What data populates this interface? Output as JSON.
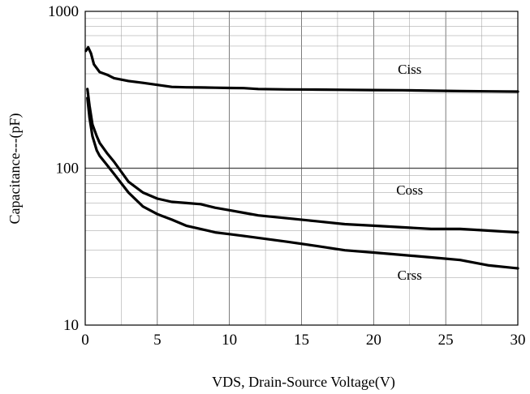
{
  "chart_data": {
    "type": "line",
    "title": "",
    "xlabel": "VDS, Drain-Source Voltage(V)",
    "ylabel": "Capacitance---(pF)",
    "xlim": [
      0,
      30
    ],
    "ylim": [
      10,
      1000
    ],
    "yscale": "log",
    "grid": true,
    "x_ticks": [
      0,
      5,
      10,
      15,
      20,
      25,
      30
    ],
    "y_ticks": [
      10,
      100,
      1000
    ],
    "series": [
      {
        "name": "Ciss",
        "x": [
          0.05,
          0.2,
          0.4,
          0.6,
          1.0,
          1.5,
          2.0,
          3.0,
          4.0,
          5.0,
          6.0,
          7.0,
          8.0,
          9.0,
          10.0,
          11.0,
          12.0,
          14.0,
          16.0,
          18.0,
          20.0,
          22.0,
          24.0,
          26.0,
          28.0,
          30.0
        ],
        "y": [
          560,
          590,
          540,
          460,
          410,
          395,
          375,
          360,
          350,
          340,
          330,
          328,
          327,
          326,
          325,
          324,
          320,
          318,
          317,
          316,
          315,
          314,
          312,
          310,
          309,
          308
        ]
      },
      {
        "name": "Coss",
        "x": [
          0.15,
          0.3,
          0.5,
          0.8,
          1.0,
          1.5,
          2.0,
          3.0,
          4.0,
          5.0,
          6.0,
          7.0,
          8.0,
          9.0,
          10.0,
          11.0,
          12.0,
          14.0,
          16.0,
          18.0,
          20.0,
          22.0,
          24.0,
          26.0,
          28.0,
          30.0
        ],
        "y": [
          320,
          250,
          190,
          160,
          145,
          125,
          110,
          82,
          70,
          64,
          61,
          60,
          59,
          56,
          54,
          52,
          50,
          48,
          46,
          44,
          43,
          42,
          41,
          41,
          40,
          39
        ]
      },
      {
        "name": "Crss",
        "x": [
          0.15,
          0.3,
          0.5,
          0.8,
          1.0,
          1.5,
          2.0,
          3.0,
          4.0,
          5.0,
          6.0,
          7.0,
          8.0,
          9.0,
          10.0,
          11.0,
          12.0,
          14.0,
          16.0,
          18.0,
          20.0,
          22.0,
          24.0,
          26.0,
          28.0,
          30.0
        ],
        "y": [
          280,
          210,
          160,
          130,
          120,
          105,
          92,
          70,
          57,
          51,
          47,
          43,
          41,
          39,
          38,
          37,
          36,
          34,
          32,
          30,
          29,
          28,
          27,
          26,
          24,
          23
        ]
      }
    ],
    "annotations": [
      {
        "text": "Ciss",
        "x": 22.5,
        "y": 400
      },
      {
        "text": "Coss",
        "x": 22.5,
        "y": 68
      },
      {
        "text": "Crss",
        "x": 22.5,
        "y": 19.5
      }
    ]
  }
}
